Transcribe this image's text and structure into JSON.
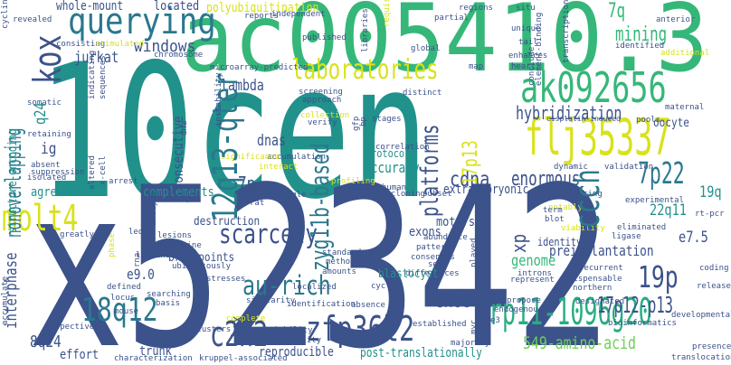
{
  "words": [
    {
      "text": "10cen",
      "color": "#21918c"
    },
    {
      "text": "x52342",
      "color": "#3b528b"
    },
    {
      "text": "ac005410.3",
      "color": "#35b779"
    },
    {
      "text": "ak092656",
      "color": "#35b779"
    },
    {
      "text": "flj35337",
      "color": "#d8e219"
    },
    {
      "text": "querying",
      "color": "#2a788e"
    },
    {
      "text": "laboratories",
      "color": "#d8e219"
    },
    {
      "text": "12q13-qter",
      "color": "#2a788e"
    },
    {
      "text": "rp11-1096g20",
      "color": "#27ad81"
    },
    {
      "text": "zfp36l2",
      "color": "#3b528b"
    },
    {
      "text": "18q12",
      "color": "#2a788e"
    },
    {
      "text": "c2h2",
      "color": "#3b528b"
    },
    {
      "text": "molt4",
      "color": "#d8e219"
    },
    {
      "text": "kox",
      "color": "#3b528b"
    },
    {
      "text": "19p",
      "color": "#3b528b"
    },
    {
      "text": "7p22",
      "color": "#2a788e"
    },
    {
      "text": "ccch",
      "color": "#2a788e"
    },
    {
      "text": "zyg11b-based",
      "color": "#2a788e"
    },
    {
      "text": "au-rich",
      "color": "#2a788e"
    },
    {
      "text": "scarcely",
      "color": "#3b528b"
    },
    {
      "text": "17p12-p13",
      "color": "#3b528b"
    },
    {
      "text": "nonoverlapping",
      "color": "#2a788e"
    },
    {
      "text": "windows",
      "color": "#3b528b"
    },
    {
      "text": "hybridization",
      "color": "#3b528b"
    },
    {
      "text": "mining",
      "color": "#35b779"
    },
    {
      "text": "7q",
      "color": "#35b779"
    },
    {
      "text": "enormous",
      "color": "#3b528b"
    },
    {
      "text": "cdna",
      "color": "#3b528b"
    },
    {
      "text": "platforms",
      "color": "#3b528b"
    },
    {
      "text": "chosen",
      "color": "#3b528b"
    },
    {
      "text": "549-amino-acid",
      "color": "#6ece58"
    },
    {
      "text": "post-translationally",
      "color": "#21918c"
    },
    {
      "text": "8q24",
      "color": "#3b528b"
    },
    {
      "text": "interphase",
      "color": "#3b528b"
    },
    {
      "text": "polyubiquitination",
      "color": "#d8e219"
    },
    {
      "text": "whole-mount",
      "color": "#3b528b"
    },
    {
      "text": "located",
      "color": "#3b528b"
    },
    {
      "text": "lambda",
      "color": "#3b528b"
    },
    {
      "text": "dnas",
      "color": "#3b528b"
    },
    {
      "text": "accuracy",
      "color": "#21918c"
    },
    {
      "text": "protocol",
      "color": "#21918c"
    },
    {
      "text": "17p13",
      "color": "#d8e219"
    },
    {
      "text": "extraembryonic",
      "color": "#3b528b"
    },
    {
      "text": "preimplantation",
      "color": "#3b528b"
    },
    {
      "text": "genome",
      "color": "#35b779"
    },
    {
      "text": "22q11",
      "color": "#21918c"
    },
    {
      "text": "e7.5",
      "color": "#3b528b"
    },
    {
      "text": "19q",
      "color": "#21918c"
    },
    {
      "text": "complements",
      "color": "#21918c"
    },
    {
      "text": "7p",
      "color": "#3b528b"
    },
    {
      "text": "destruction",
      "color": "#3b528b"
    },
    {
      "text": "breakpoints",
      "color": "#3b528b"
    },
    {
      "text": "e9.0",
      "color": "#3b528b"
    },
    {
      "text": "blastocyst",
      "color": "#21918c"
    },
    {
      "text": "exons",
      "color": "#3b528b"
    },
    {
      "text": "motifs",
      "color": "#3b528b"
    },
    {
      "text": "xp",
      "color": "#3b528b"
    },
    {
      "text": "identity",
      "color": "#3b528b"
    },
    {
      "text": "reproducible",
      "color": "#3b528b"
    },
    {
      "text": "trunk",
      "color": "#3b528b"
    },
    {
      "text": "effort",
      "color": "#3b528b"
    },
    {
      "text": "box",
      "color": "#3b528b"
    },
    {
      "text": "consecutive",
      "color": "#3b528b"
    },
    {
      "text": "ig",
      "color": "#3b528b"
    },
    {
      "text": "q24",
      "color": "#21918c"
    },
    {
      "text": "jurkat",
      "color": "#3b528b"
    },
    {
      "text": "agreement",
      "color": "#21918c"
    },
    {
      "text": "structure-encoding",
      "color": "#21918c"
    },
    {
      "text": "oocyte",
      "color": "#3b528b"
    },
    {
      "text": "microarray-predicted",
      "color": "#3b528b"
    },
    {
      "text": "cisplatin-induced",
      "color": "#3b528b"
    },
    {
      "text": "stages",
      "color": "#3b528b"
    },
    {
      "text": "screening",
      "color": "#3b528b"
    },
    {
      "text": "rodent-human",
      "color": "#3b528b"
    },
    {
      "text": "cloning",
      "color": "#3b528b"
    },
    {
      "text": "subset",
      "color": "#3b528b"
    },
    {
      "text": "dynamic",
      "color": "#3b528b"
    },
    {
      "text": "validation",
      "color": "#3b528b"
    },
    {
      "text": "silencing",
      "color": "#3b528b"
    },
    {
      "text": "experimental",
      "color": "#3b528b"
    },
    {
      "text": "rt-pcr",
      "color": "#3b528b"
    },
    {
      "text": "eliminated",
      "color": "#3b528b"
    },
    {
      "text": "ligase",
      "color": "#3b528b"
    },
    {
      "text": "viability",
      "color": "#d8e219"
    },
    {
      "text": "blot",
      "color": "#3b528b"
    },
    {
      "text": "notably",
      "color": "#d8e219"
    },
    {
      "text": "abundance",
      "color": "#3b528b"
    },
    {
      "text": "pattern",
      "color": "#3b528b"
    },
    {
      "text": "consensus",
      "color": "#3b528b"
    },
    {
      "text": "set",
      "color": "#3b528b"
    },
    {
      "text": "differences",
      "color": "#3b528b"
    },
    {
      "text": "introns",
      "color": "#3b528b"
    },
    {
      "text": "represent",
      "color": "#3b528b"
    },
    {
      "text": "recurrent",
      "color": "#3b528b"
    },
    {
      "text": "dispensable",
      "color": "#3b528b"
    },
    {
      "text": "northern",
      "color": "#3b528b"
    },
    {
      "text": "release",
      "color": "#3b528b"
    },
    {
      "text": "coding",
      "color": "#3b528b"
    },
    {
      "text": "bioinformatics",
      "color": "#3b528b"
    },
    {
      "text": "developmental",
      "color": "#3b528b"
    },
    {
      "text": "presence",
      "color": "#3b528b"
    },
    {
      "text": "translocation",
      "color": "#3b528b"
    },
    {
      "text": "propose",
      "color": "#3b528b"
    },
    {
      "text": "endogenous",
      "color": "#3b528b"
    },
    {
      "text": "designated",
      "color": "#3b528b"
    },
    {
      "text": "established",
      "color": "#3b528b"
    },
    {
      "text": "majority",
      "color": "#3b528b"
    },
    {
      "text": "identification",
      "color": "#3b528b"
    },
    {
      "text": "absence",
      "color": "#3b528b"
    },
    {
      "text": "variability",
      "color": "#3b528b"
    },
    {
      "text": "availability",
      "color": "#3b528b"
    },
    {
      "text": "characterization",
      "color": "#3b528b"
    },
    {
      "text": "kruppel-associated",
      "color": "#3b528b"
    },
    {
      "text": "clusters",
      "color": "#3b528b"
    },
    {
      "text": "complete",
      "color": "#d8e219"
    },
    {
      "text": "localized",
      "color": "#3b528b"
    },
    {
      "text": "cycle",
      "color": "#3b528b"
    },
    {
      "text": "searching",
      "color": "#3b528b"
    },
    {
      "text": "basis",
      "color": "#3b528b"
    },
    {
      "text": "stresses",
      "color": "#3b528b"
    },
    {
      "text": "ubiquitously",
      "color": "#3b528b"
    },
    {
      "text": "lesions",
      "color": "#3b528b"
    },
    {
      "text": "determine",
      "color": "#3b528b"
    },
    {
      "text": "leucine",
      "color": "#3b528b"
    },
    {
      "text": "defined",
      "color": "#3b528b"
    },
    {
      "text": "locus",
      "color": "#3b528b"
    },
    {
      "text": "mouse",
      "color": "#3b528b"
    },
    {
      "text": "respective",
      "color": "#3b528b"
    },
    {
      "text": "greatly",
      "color": "#3b528b"
    },
    {
      "text": "phase",
      "color": "#d8e219"
    },
    {
      "text": "analyze",
      "color": "#3b528b"
    },
    {
      "text": "embryo",
      "color": "#3b528b"
    },
    {
      "text": "arrest",
      "color": "#3b528b"
    },
    {
      "text": "isolated",
      "color": "#3b528b"
    },
    {
      "text": "absent",
      "color": "#3b528b"
    },
    {
      "text": "suppression",
      "color": "#3b528b"
    },
    {
      "text": "retaining",
      "color": "#3b528b"
    },
    {
      "text": "somatic",
      "color": "#3b528b"
    },
    {
      "text": "consisting",
      "color": "#3b528b"
    },
    {
      "text": "stimulated",
      "color": "#d8e219"
    },
    {
      "text": "chromosome",
      "color": "#3b528b"
    },
    {
      "text": "revealed",
      "color": "#3b528b"
    },
    {
      "text": "reports",
      "color": "#3b528b"
    },
    {
      "text": "independent",
      "color": "#3b528b"
    },
    {
      "text": "published",
      "color": "#3b528b"
    },
    {
      "text": "regions",
      "color": "#3b528b"
    },
    {
      "text": "partial",
      "color": "#3b528b"
    },
    {
      "text": "global",
      "color": "#3b528b"
    },
    {
      "text": "situ",
      "color": "#3b528b"
    },
    {
      "text": "unique",
      "color": "#3b528b"
    },
    {
      "text": "tail",
      "color": "#3b528b"
    },
    {
      "text": "enhances",
      "color": "#3b528b"
    },
    {
      "text": "map",
      "color": "#3b528b"
    },
    {
      "text": "heart",
      "color": "#3b528b"
    },
    {
      "text": "distinct",
      "color": "#3b528b"
    },
    {
      "text": "verify",
      "color": "#3b528b"
    },
    {
      "text": "approach",
      "color": "#3b528b"
    },
    {
      "text": "collection",
      "color": "#d8e219"
    },
    {
      "text": "correlation",
      "color": "#3b528b"
    },
    {
      "text": "pools",
      "color": "#3b528b"
    },
    {
      "text": "maternal",
      "color": "#3b528b"
    },
    {
      "text": "anterior",
      "color": "#3b528b"
    },
    {
      "text": "identified",
      "color": "#3b528b"
    },
    {
      "text": "additional",
      "color": "#d8e219"
    },
    {
      "text": "conclude",
      "color": "#3b528b"
    },
    {
      "text": "element-binding",
      "color": "#3b528b"
    },
    {
      "text": "transcription",
      "color": "#3b528b"
    },
    {
      "text": "sequences",
      "color": "#3b528b"
    },
    {
      "text": "indicating",
      "color": "#3b528b"
    },
    {
      "text": "instability",
      "color": "#3b528b"
    },
    {
      "text": "interact",
      "color": "#d8e219"
    },
    {
      "text": "accumulation",
      "color": "#3b528b"
    },
    {
      "text": "significance",
      "color": "#d8e219"
    },
    {
      "text": "combined",
      "color": "#3b528b"
    },
    {
      "text": "single",
      "color": "#3b528b"
    },
    {
      "text": "rat",
      "color": "#3b528b"
    },
    {
      "text": "profiling",
      "color": "#d8e219"
    },
    {
      "text": "standard",
      "color": "#3b528b"
    },
    {
      "text": "method",
      "color": "#3b528b"
    },
    {
      "text": "led",
      "color": "#3b528b"
    },
    {
      "text": "similarity",
      "color": "#3b528b"
    },
    {
      "text": "amounts",
      "color": "#3b528b"
    },
    {
      "text": "e3",
      "color": "#3b528b"
    },
    {
      "text": "dna",
      "color": "#3b528b"
    },
    {
      "text": "x-cell",
      "color": "#3b528b"
    },
    {
      "text": "altered",
      "color": "#3b528b"
    },
    {
      "text": "myc",
      "color": "#3b528b"
    },
    {
      "text": "rna",
      "color": "#3b528b"
    },
    {
      "text": "bp",
      "color": "#3b528b"
    },
    {
      "text": "gfp",
      "color": "#3b528b"
    },
    {
      "text": "term",
      "color": "#3b528b"
    },
    {
      "text": "required",
      "color": "#d8e219"
    },
    {
      "text": "libraries",
      "color": "#3b528b"
    },
    {
      "text": "played",
      "color": "#3b528b"
    },
    {
      "text": "accumulate",
      "color": "#3b528b"
    },
    {
      "text": "cyclins",
      "color": "#3b528b"
    }
  ]
}
